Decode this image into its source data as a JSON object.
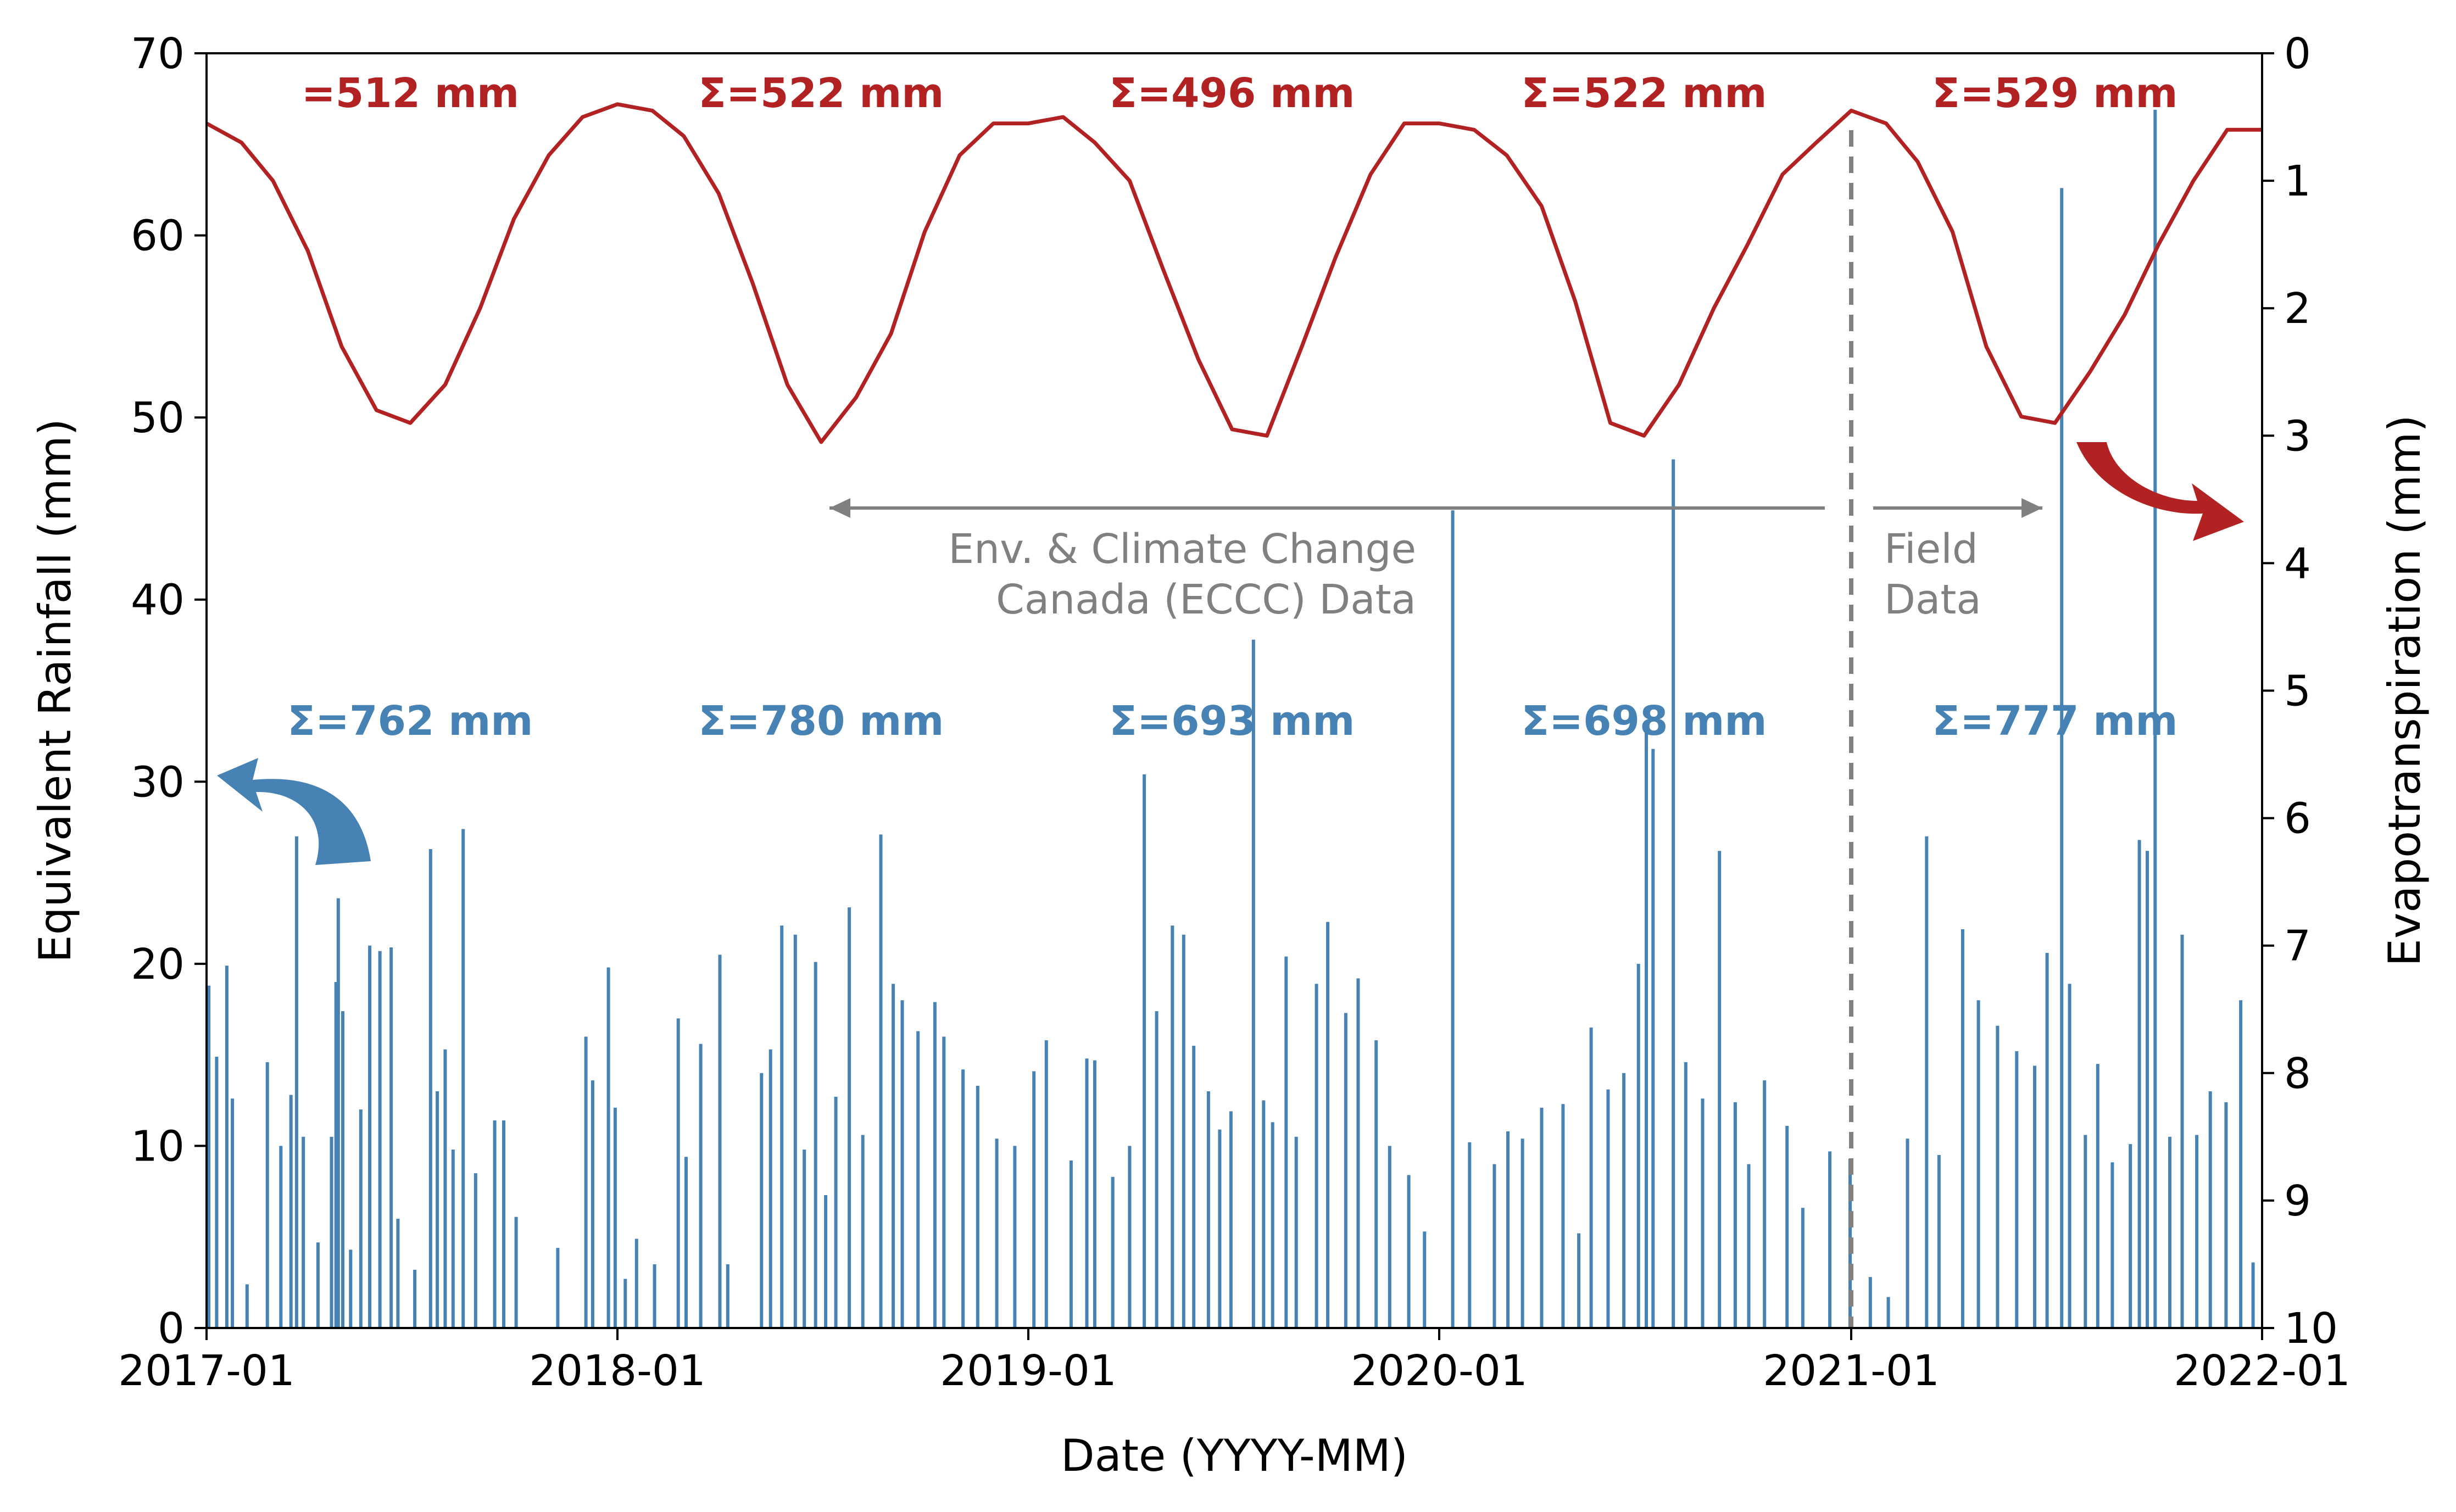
{
  "colors": {
    "rain": "#4682b4",
    "et": "#b22222",
    "annotation": "#808080",
    "axis": "#000000"
  },
  "chart_data": {
    "type": "bar+line",
    "xlabel": "Date (YYYY-MM)",
    "ylabel_left": "Equivalent Rainfall (mm)",
    "ylabel_right": "Evapotranspiration (mm)",
    "x_range": [
      "2017-01",
      "2022-01"
    ],
    "x_ticks": [
      "2017-01",
      "2018-01",
      "2019-01",
      "2020-01",
      "2021-01",
      "2022-01"
    ],
    "y_left_range": [
      0,
      70
    ],
    "y_left_ticks": [
      "0",
      "10",
      "20",
      "30",
      "40",
      "50",
      "60",
      "70"
    ],
    "y_right_range": [
      0,
      10
    ],
    "y_right_inverted": true,
    "y_right_ticks": [
      "0",
      "1",
      "2",
      "3",
      "4",
      "5",
      "6",
      "7",
      "8",
      "9",
      "10"
    ],
    "et_annual_sums": [
      "=512 mm",
      "Σ=522 mm",
      "Σ=496 mm",
      "Σ=522 mm",
      "Σ=529 mm"
    ],
    "rain_annual_sums": [
      "Σ=762 mm",
      "Σ=780 mm",
      "Σ=693 mm",
      "Σ=698 mm",
      "Σ=777 mm"
    ],
    "sum_years": [
      "2017",
      "2018",
      "2019",
      "2020",
      "2021"
    ],
    "data_source_split_date": "2021-01",
    "annotations": {
      "eccc": [
        "Env. & Climate Change",
        "Canada (ECCC) Data"
      ],
      "field": [
        "Field",
        "Data"
      ]
    },
    "series": [
      {
        "kind": "bar",
        "axis": "left",
        "unit": "mm/day",
        "note": "daily equivalent rainfall; approximate read-off, notable events",
        "points": [
          [
            "2017-01-03",
            18.8
          ],
          [
            "2017-01-10",
            14.9
          ],
          [
            "2017-01-19",
            19.9
          ],
          [
            "2017-01-24",
            12.6
          ],
          [
            "2017-02-06",
            2.4
          ],
          [
            "2017-02-24",
            14.6
          ],
          [
            "2017-03-08",
            10.0
          ],
          [
            "2017-03-17",
            12.8
          ],
          [
            "2017-03-22",
            27.0
          ],
          [
            "2017-03-28",
            10.5
          ],
          [
            "2017-04-10",
            4.7
          ],
          [
            "2017-04-22",
            10.5
          ],
          [
            "2017-04-26",
            19.0
          ],
          [
            "2017-04-28",
            23.6
          ],
          [
            "2017-05-02",
            17.4
          ],
          [
            "2017-05-09",
            4.3
          ],
          [
            "2017-05-18",
            12.0
          ],
          [
            "2017-05-26",
            21.0
          ],
          [
            "2017-06-04",
            20.7
          ],
          [
            "2017-06-14",
            20.9
          ],
          [
            "2017-06-20",
            6.0
          ],
          [
            "2017-07-05",
            3.2
          ],
          [
            "2017-07-19",
            26.3
          ],
          [
            "2017-07-25",
            13.0
          ],
          [
            "2017-08-01",
            15.3
          ],
          [
            "2017-08-08",
            9.8
          ],
          [
            "2017-08-17",
            27.4
          ],
          [
            "2017-08-28",
            8.5
          ],
          [
            "2017-09-14",
            11.4
          ],
          [
            "2017-09-22",
            11.4
          ],
          [
            "2017-10-03",
            6.1
          ],
          [
            "2017-11-09",
            4.4
          ],
          [
            "2017-12-04",
            16.0
          ],
          [
            "2017-12-10",
            13.6
          ],
          [
            "2017-12-24",
            19.8
          ],
          [
            "2017-12-30",
            12.1
          ],
          [
            "2018-01-08",
            2.7
          ],
          [
            "2018-01-18",
            4.9
          ],
          [
            "2018-02-03",
            3.5
          ],
          [
            "2018-02-24",
            17.0
          ],
          [
            "2018-03-03",
            9.4
          ],
          [
            "2018-03-16",
            15.6
          ],
          [
            "2018-04-02",
            20.5
          ],
          [
            "2018-04-09",
            3.5
          ],
          [
            "2018-05-09",
            14.0
          ],
          [
            "2018-05-17",
            15.3
          ],
          [
            "2018-05-27",
            22.1
          ],
          [
            "2018-06-08",
            21.6
          ],
          [
            "2018-06-16",
            9.8
          ],
          [
            "2018-06-26",
            20.1
          ],
          [
            "2018-07-05",
            7.3
          ],
          [
            "2018-07-14",
            12.7
          ],
          [
            "2018-07-26",
            23.1
          ],
          [
            "2018-08-07",
            10.6
          ],
          [
            "2018-08-23",
            27.1
          ],
          [
            "2018-09-03",
            18.9
          ],
          [
            "2018-09-11",
            18.0
          ],
          [
            "2018-09-25",
            16.3
          ],
          [
            "2018-10-10",
            17.9
          ],
          [
            "2018-10-18",
            16.0
          ],
          [
            "2018-11-04",
            14.2
          ],
          [
            "2018-11-17",
            13.3
          ],
          [
            "2018-12-04",
            10.4
          ],
          [
            "2018-12-20",
            10.0
          ],
          [
            "2019-01-06",
            14.1
          ],
          [
            "2019-01-17",
            15.8
          ],
          [
            "2019-02-08",
            9.2
          ],
          [
            "2019-02-22",
            14.8
          ],
          [
            "2019-03-01",
            14.7
          ],
          [
            "2019-03-17",
            8.3
          ],
          [
            "2019-04-01",
            10.0
          ],
          [
            "2019-04-14",
            30.4
          ],
          [
            "2019-04-25",
            17.4
          ],
          [
            "2019-05-09",
            22.1
          ],
          [
            "2019-05-19",
            21.6
          ],
          [
            "2019-05-28",
            15.5
          ],
          [
            "2019-06-10",
            13.0
          ],
          [
            "2019-06-20",
            10.9
          ],
          [
            "2019-06-30",
            11.9
          ],
          [
            "2019-07-20",
            37.8
          ],
          [
            "2019-07-29",
            12.5
          ],
          [
            "2019-08-06",
            11.3
          ],
          [
            "2019-08-18",
            20.4
          ],
          [
            "2019-08-27",
            10.5
          ],
          [
            "2019-09-14",
            18.9
          ],
          [
            "2019-09-24",
            22.3
          ],
          [
            "2019-10-10",
            17.3
          ],
          [
            "2019-10-21",
            19.2
          ],
          [
            "2019-11-06",
            15.8
          ],
          [
            "2019-11-18",
            10.0
          ],
          [
            "2019-12-05",
            8.4
          ],
          [
            "2019-12-19",
            5.3
          ],
          [
            "2020-01-13",
            44.9
          ],
          [
            "2020-01-28",
            10.2
          ],
          [
            "2020-02-19",
            9.0
          ],
          [
            "2020-03-02",
            10.8
          ],
          [
            "2020-03-15",
            10.4
          ],
          [
            "2020-04-01",
            12.1
          ],
          [
            "2020-04-20",
            12.3
          ],
          [
            "2020-05-04",
            5.2
          ],
          [
            "2020-05-15",
            16.5
          ],
          [
            "2020-05-30",
            13.1
          ],
          [
            "2020-06-13",
            14.0
          ],
          [
            "2020-06-26",
            20.0
          ],
          [
            "2020-07-03",
            32.8
          ],
          [
            "2020-07-09",
            31.8
          ],
          [
            "2020-07-27",
            47.7
          ],
          [
            "2020-08-07",
            14.6
          ],
          [
            "2020-08-22",
            12.6
          ],
          [
            "2020-09-06",
            26.2
          ],
          [
            "2020-09-20",
            12.4
          ],
          [
            "2020-10-02",
            9.0
          ],
          [
            "2020-10-16",
            13.6
          ],
          [
            "2020-11-05",
            11.1
          ],
          [
            "2020-11-19",
            6.6
          ],
          [
            "2020-12-13",
            9.7
          ],
          [
            "2020-12-31",
            9.3
          ],
          [
            "2021-01-18",
            2.8
          ],
          [
            "2021-02-03",
            1.7
          ],
          [
            "2021-02-20",
            10.4
          ],
          [
            "2021-03-09",
            27.0
          ],
          [
            "2021-03-20",
            9.5
          ],
          [
            "2021-04-10",
            21.9
          ],
          [
            "2021-04-24",
            18.0
          ],
          [
            "2021-05-11",
            16.6
          ],
          [
            "2021-05-28",
            15.2
          ],
          [
            "2021-06-13",
            14.4
          ],
          [
            "2021-06-24",
            20.6
          ],
          [
            "2021-07-07",
            62.6
          ],
          [
            "2021-07-14",
            18.9
          ],
          [
            "2021-07-28",
            10.6
          ],
          [
            "2021-08-08",
            14.5
          ],
          [
            "2021-08-21",
            9.1
          ],
          [
            "2021-09-06",
            10.1
          ],
          [
            "2021-09-14",
            26.8
          ],
          [
            "2021-09-21",
            26.2
          ],
          [
            "2021-09-28",
            66.9
          ],
          [
            "2021-10-11",
            10.5
          ],
          [
            "2021-10-22",
            21.6
          ],
          [
            "2021-11-04",
            10.6
          ],
          [
            "2021-11-16",
            13.0
          ],
          [
            "2021-11-30",
            12.4
          ],
          [
            "2021-12-13",
            18.0
          ],
          [
            "2021-12-24",
            3.6
          ]
        ]
      },
      {
        "kind": "line",
        "axis": "right",
        "unit": "mm/day",
        "note": "daily evapotranspiration on inverted right axis; approximate seasonal read-off",
        "points": [
          [
            "2017-01-01",
            0.55
          ],
          [
            "2017-02-01",
            0.7
          ],
          [
            "2017-03-01",
            1.0
          ],
          [
            "2017-04-01",
            1.55
          ],
          [
            "2017-05-01",
            2.3
          ],
          [
            "2017-06-01",
            2.8
          ],
          [
            "2017-07-01",
            2.9
          ],
          [
            "2017-08-01",
            2.6
          ],
          [
            "2017-09-01",
            2.0
          ],
          [
            "2017-10-01",
            1.3
          ],
          [
            "2017-11-01",
            0.8
          ],
          [
            "2017-12-01",
            0.5
          ],
          [
            "2018-01-01",
            0.4
          ],
          [
            "2018-02-01",
            0.45
          ],
          [
            "2018-03-01",
            0.65
          ],
          [
            "2018-04-01",
            1.1
          ],
          [
            "2018-05-01",
            1.8
          ],
          [
            "2018-06-01",
            2.6
          ],
          [
            "2018-07-01",
            3.05
          ],
          [
            "2018-08-01",
            2.7
          ],
          [
            "2018-09-01",
            2.2
          ],
          [
            "2018-10-01",
            1.4
          ],
          [
            "2018-11-01",
            0.8
          ],
          [
            "2018-12-01",
            0.55
          ],
          [
            "2019-01-01",
            0.55
          ],
          [
            "2019-02-01",
            0.5
          ],
          [
            "2019-03-01",
            0.7
          ],
          [
            "2019-04-01",
            1.0
          ],
          [
            "2019-05-01",
            1.7
          ],
          [
            "2019-06-01",
            2.4
          ],
          [
            "2019-07-01",
            2.95
          ],
          [
            "2019-08-01",
            3.0
          ],
          [
            "2019-09-01",
            2.3
          ],
          [
            "2019-10-01",
            1.6
          ],
          [
            "2019-11-01",
            0.95
          ],
          [
            "2019-12-01",
            0.55
          ],
          [
            "2020-01-01",
            0.55
          ],
          [
            "2020-02-01",
            0.6
          ],
          [
            "2020-03-01",
            0.8
          ],
          [
            "2020-04-01",
            1.2
          ],
          [
            "2020-05-01",
            1.95
          ],
          [
            "2020-06-01",
            2.9
          ],
          [
            "2020-07-01",
            3.0
          ],
          [
            "2020-08-01",
            2.6
          ],
          [
            "2020-09-01",
            2.0
          ],
          [
            "2020-10-01",
            1.5
          ],
          [
            "2020-11-01",
            0.95
          ],
          [
            "2020-12-01",
            0.7
          ],
          [
            "2021-01-01",
            0.45
          ],
          [
            "2021-02-01",
            0.55
          ],
          [
            "2021-03-01",
            0.85
          ],
          [
            "2021-04-01",
            1.4
          ],
          [
            "2021-05-01",
            2.3
          ],
          [
            "2021-06-01",
            2.85
          ],
          [
            "2021-07-01",
            2.9
          ],
          [
            "2021-08-01",
            2.5
          ],
          [
            "2021-09-01",
            2.05
          ],
          [
            "2021-10-01",
            1.5
          ],
          [
            "2021-11-01",
            1.0
          ],
          [
            "2021-12-01",
            0.6
          ],
          [
            "2022-01-01",
            0.6
          ]
        ]
      }
    ]
  }
}
